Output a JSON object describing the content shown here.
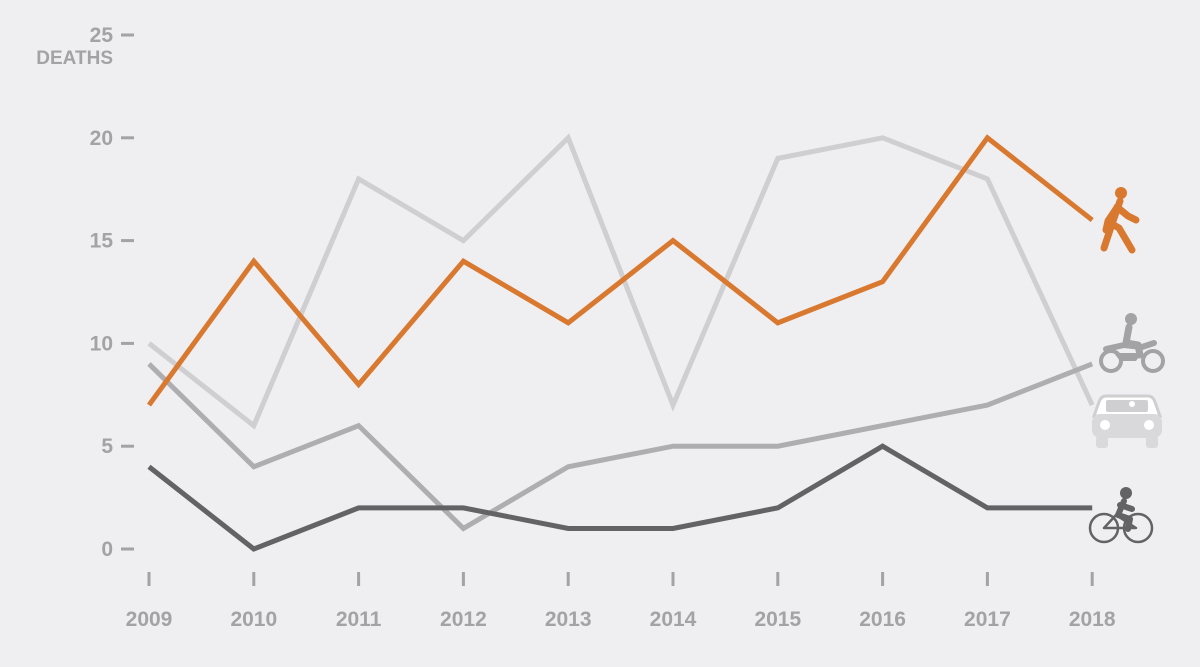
{
  "chart_data": {
    "type": "line",
    "ylabel": "DEATHS",
    "ylim": [
      0,
      25
    ],
    "yticks": [
      0,
      5,
      10,
      15,
      20,
      25
    ],
    "x": [
      "2009",
      "2010",
      "2011",
      "2012",
      "2013",
      "2014",
      "2015",
      "2016",
      "2017",
      "2018"
    ],
    "grid": false,
    "series": [
      {
        "key": "car",
        "icon": "car-icon",
        "color": "#cfcfd2",
        "values": [
          10,
          6,
          18,
          15,
          20,
          7,
          19,
          20,
          18,
          7
        ]
      },
      {
        "key": "motorcycle",
        "icon": "motorcycle-icon",
        "color": "#aeaeb1",
        "values": [
          9,
          4,
          6,
          1,
          4,
          5,
          5,
          6,
          7,
          9
        ]
      },
      {
        "key": "bicycle",
        "icon": "bicycle-icon",
        "color": "#636366",
        "values": [
          4,
          0,
          2,
          2,
          1,
          1,
          2,
          5,
          2,
          2
        ]
      },
      {
        "key": "pedestrian",
        "icon": "pedestrian-icon",
        "color": "#d9782f",
        "values": [
          7,
          14,
          8,
          14,
          11,
          15,
          11,
          13,
          20,
          16
        ]
      }
    ]
  }
}
